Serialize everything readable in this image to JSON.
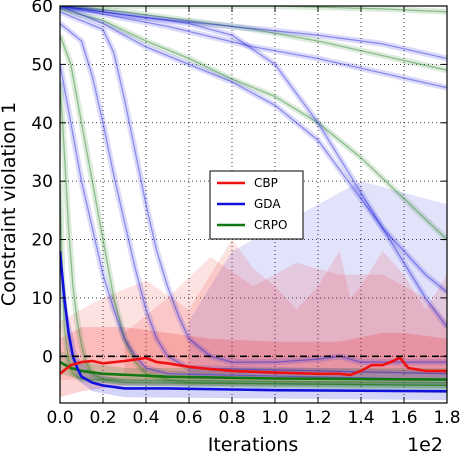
{
  "chart_data": {
    "type": "line",
    "title": "",
    "xlabel": "Iterations",
    "ylabel": "Constraint violation 1",
    "x_offset_text": "1e2",
    "xlim": [
      0,
      1.8
    ],
    "ylim": [
      -8,
      60
    ],
    "xticks": [
      "0.0",
      "0.2",
      "0.4",
      "0.6",
      "0.8",
      "1.0",
      "1.2",
      "1.4",
      "1.6",
      "1.8"
    ],
    "yticks": [
      "0",
      "10",
      "20",
      "30",
      "40",
      "50",
      "60"
    ],
    "ytick_values": [
      0,
      10,
      20,
      30,
      40,
      50,
      60
    ],
    "grid": true,
    "reference_line": {
      "y": 0,
      "style": "dashed",
      "color": "#000000"
    },
    "legend_position": "center-right",
    "legend": [
      "CBP",
      "GDA",
      "CRPO"
    ],
    "colors": {
      "CBP": "#ee1111",
      "GDA": "#1111dd",
      "CRPO": "#117711"
    },
    "series": [
      {
        "name": "CBP",
        "color": "#ee1111",
        "bold": true,
        "points": [
          [
            0,
            -3
          ],
          [
            0.05,
            -1.5
          ],
          [
            0.1,
            -1
          ],
          [
            0.15,
            -0.8
          ],
          [
            0.2,
            -1.2
          ],
          [
            0.3,
            -0.8
          ],
          [
            0.4,
            -0.3
          ],
          [
            0.45,
            -1
          ],
          [
            0.5,
            -1.2
          ],
          [
            0.6,
            -1.8
          ],
          [
            0.7,
            -2.2
          ],
          [
            0.8,
            -2.5
          ],
          [
            1.0,
            -2.8
          ],
          [
            1.2,
            -3
          ],
          [
            1.3,
            -3
          ],
          [
            1.35,
            -3.2
          ],
          [
            1.4,
            -2.5
          ],
          [
            1.45,
            -1.5
          ],
          [
            1.5,
            -1.5
          ],
          [
            1.55,
            -0.8
          ],
          [
            1.58,
            -0.2
          ],
          [
            1.62,
            -2
          ],
          [
            1.7,
            -2.5
          ],
          [
            1.8,
            -2.5
          ]
        ],
        "band": [
          [
            0,
            -7,
            3
          ],
          [
            0.1,
            -6,
            5
          ],
          [
            0.3,
            -5,
            5
          ],
          [
            0.5,
            -5,
            4
          ],
          [
            0.7,
            -5,
            3
          ],
          [
            1.0,
            -5,
            2.5
          ],
          [
            1.3,
            -5,
            2.5
          ],
          [
            1.5,
            -5,
            4
          ],
          [
            1.6,
            -5,
            4
          ],
          [
            1.8,
            -5,
            3
          ]
        ]
      },
      {
        "name": "GDA",
        "color": "#1111dd",
        "bold": true,
        "points": [
          [
            0,
            18
          ],
          [
            0.02,
            10
          ],
          [
            0.04,
            4
          ],
          [
            0.06,
            0
          ],
          [
            0.08,
            -2
          ],
          [
            0.1,
            -3.5
          ],
          [
            0.15,
            -4.5
          ],
          [
            0.2,
            -5
          ],
          [
            0.3,
            -5.5
          ],
          [
            0.5,
            -5.5
          ],
          [
            1.0,
            -5.8
          ],
          [
            1.8,
            -6
          ]
        ],
        "band": [
          [
            0,
            12,
            19
          ],
          [
            0.04,
            1,
            7
          ],
          [
            0.08,
            -4,
            0
          ],
          [
            0.15,
            -6,
            -3
          ],
          [
            0.3,
            -7,
            -4
          ],
          [
            1.8,
            -7.5,
            -4.5
          ]
        ]
      },
      {
        "name": "CRPO",
        "color": "#117711",
        "bold": true,
        "points": [
          [
            0,
            -1
          ],
          [
            0.05,
            -2
          ],
          [
            0.1,
            -2.5
          ],
          [
            0.2,
            -3
          ],
          [
            0.5,
            -3.5
          ],
          [
            1.0,
            -3.8
          ],
          [
            1.8,
            -4
          ]
        ],
        "band": [
          [
            0,
            -3,
            1
          ],
          [
            0.1,
            -4,
            -1
          ],
          [
            0.3,
            -5,
            -2
          ],
          [
            1.8,
            -6,
            -2
          ]
        ]
      },
      {
        "name": "",
        "color": "#117711",
        "points": [
          [
            0,
            60
          ],
          [
            0.5,
            60
          ],
          [
            1.0,
            60
          ],
          [
            1.5,
            59.5
          ],
          [
            1.8,
            59
          ]
        ]
      },
      {
        "name": "",
        "color": "#117711",
        "points": [
          [
            0,
            60
          ],
          [
            0.3,
            59
          ],
          [
            0.6,
            57.5
          ],
          [
            0.9,
            56
          ],
          [
            1.2,
            54
          ],
          [
            1.5,
            51.5
          ],
          [
            1.8,
            49
          ]
        ]
      },
      {
        "name": "",
        "color": "#117711",
        "points": [
          [
            0,
            59.5
          ],
          [
            0.2,
            57.5
          ],
          [
            0.4,
            54
          ],
          [
            0.6,
            51
          ],
          [
            0.8,
            47.5
          ],
          [
            1.0,
            44.5
          ],
          [
            1.2,
            40
          ],
          [
            1.4,
            34
          ],
          [
            1.6,
            27
          ],
          [
            1.8,
            20
          ]
        ]
      },
      {
        "name": "",
        "color": "#117711",
        "points": [
          [
            0,
            55
          ],
          [
            0.05,
            50
          ],
          [
            0.1,
            40
          ],
          [
            0.15,
            30
          ],
          [
            0.2,
            20
          ],
          [
            0.25,
            10
          ],
          [
            0.3,
            3
          ],
          [
            0.35,
            -1
          ],
          [
            0.4,
            -3
          ],
          [
            0.5,
            -4
          ],
          [
            0.6,
            -4.5
          ],
          [
            1.8,
            -5
          ]
        ]
      },
      {
        "name": "",
        "color": "#117711",
        "points": [
          [
            0,
            47
          ],
          [
            0.02,
            35
          ],
          [
            0.04,
            22
          ],
          [
            0.06,
            12
          ],
          [
            0.08,
            6
          ],
          [
            0.1,
            2
          ],
          [
            0.12,
            -1
          ],
          [
            0.15,
            -3
          ],
          [
            0.2,
            -4
          ],
          [
            0.3,
            -4.5
          ],
          [
            1.8,
            -5
          ]
        ]
      },
      {
        "name": "",
        "color": "#117711",
        "points": [
          [
            0,
            30
          ],
          [
            0.01,
            15
          ],
          [
            0.02,
            5
          ],
          [
            0.04,
            -1
          ],
          [
            0.06,
            -3
          ],
          [
            0.1,
            -4
          ],
          [
            1.8,
            -4.5
          ]
        ]
      },
      {
        "name": "",
        "color": "#1111dd",
        "points": [
          [
            0,
            60
          ],
          [
            0.4,
            58
          ],
          [
            0.8,
            56.5
          ],
          [
            1.2,
            55
          ],
          [
            1.5,
            53.5
          ],
          [
            1.8,
            51
          ]
        ]
      },
      {
        "name": "",
        "color": "#1111dd",
        "points": [
          [
            0,
            60
          ],
          [
            0.5,
            56.5
          ],
          [
            0.9,
            53
          ],
          [
            1.2,
            51
          ],
          [
            1.5,
            48.5
          ],
          [
            1.8,
            46
          ]
        ]
      },
      {
        "name": "",
        "color": "#1111dd",
        "points": [
          [
            0,
            60
          ],
          [
            0.2,
            57
          ],
          [
            0.4,
            53
          ],
          [
            0.6,
            50
          ],
          [
            0.8,
            47
          ],
          [
            1.0,
            43
          ],
          [
            1.2,
            37
          ],
          [
            1.3,
            32
          ],
          [
            1.4,
            27
          ],
          [
            1.5,
            22
          ],
          [
            1.6,
            18
          ],
          [
            1.7,
            14
          ],
          [
            1.8,
            11
          ]
        ]
      },
      {
        "name": "",
        "color": "#1111dd",
        "points": [
          [
            0,
            59
          ],
          [
            0.2,
            56
          ],
          [
            0.25,
            52
          ],
          [
            0.3,
            44
          ],
          [
            0.35,
            35
          ],
          [
            0.4,
            26
          ],
          [
            0.45,
            18
          ],
          [
            0.5,
            12
          ],
          [
            0.55,
            7
          ],
          [
            0.6,
            3
          ],
          [
            0.7,
            0
          ],
          [
            0.8,
            -1
          ],
          [
            1.0,
            -1
          ],
          [
            1.2,
            -0.5
          ],
          [
            1.3,
            0
          ],
          [
            1.4,
            -1
          ],
          [
            1.6,
            -1
          ],
          [
            1.8,
            -1
          ]
        ]
      },
      {
        "name": "",
        "color": "#1111dd",
        "points": [
          [
            0,
            57
          ],
          [
            0.1,
            54
          ],
          [
            0.15,
            48
          ],
          [
            0.2,
            40
          ],
          [
            0.25,
            31
          ],
          [
            0.3,
            23
          ],
          [
            0.35,
            15
          ],
          [
            0.4,
            8
          ],
          [
            0.45,
            3
          ],
          [
            0.5,
            0
          ],
          [
            0.6,
            -2
          ],
          [
            1.8,
            -3
          ]
        ]
      },
      {
        "name": "",
        "color": "#1111dd",
        "points": [
          [
            0,
            50
          ],
          [
            0.05,
            40
          ],
          [
            0.1,
            30
          ],
          [
            0.15,
            22
          ],
          [
            0.2,
            14
          ],
          [
            0.25,
            8
          ],
          [
            0.3,
            3
          ],
          [
            0.35,
            0
          ],
          [
            0.4,
            -2
          ],
          [
            0.5,
            -3
          ],
          [
            1.8,
            -4
          ]
        ]
      },
      {
        "name": "",
        "color": "#1111dd",
        "points": [
          [
            0,
            60
          ],
          [
            0.6,
            57
          ],
          [
            0.8,
            55
          ],
          [
            1.0,
            50
          ],
          [
            1.1,
            45
          ],
          [
            1.2,
            40
          ],
          [
            1.3,
            34
          ],
          [
            1.4,
            28
          ],
          [
            1.5,
            22
          ],
          [
            1.6,
            16
          ],
          [
            1.7,
            10
          ],
          [
            1.8,
            5
          ]
        ]
      }
    ],
    "extra_bands": [
      {
        "color": "#1111dd",
        "points": [
          [
            0.6,
            -4,
            6
          ],
          [
            0.8,
            -4,
            18
          ],
          [
            1.0,
            -4,
            22
          ],
          [
            1.2,
            -4,
            26
          ],
          [
            1.4,
            -4,
            30
          ],
          [
            1.6,
            -4,
            28
          ],
          [
            1.8,
            -4,
            26
          ]
        ]
      },
      {
        "color": "#ee1111",
        "points": [
          [
            0.0,
            -4,
            6
          ],
          [
            0.2,
            -4,
            10
          ],
          [
            0.4,
            -4,
            13
          ],
          [
            0.6,
            -4,
            8
          ],
          [
            0.8,
            -4,
            20
          ],
          [
            0.9,
            -4,
            15
          ],
          [
            1.0,
            -4,
            12
          ],
          [
            1.1,
            -4,
            8
          ],
          [
            1.2,
            -4,
            12
          ],
          [
            1.3,
            -4,
            18
          ],
          [
            1.35,
            -4,
            10
          ],
          [
            1.4,
            -4,
            12
          ],
          [
            1.5,
            -4,
            18
          ],
          [
            1.6,
            -4,
            14
          ],
          [
            1.7,
            -4,
            8
          ],
          [
            1.8,
            -4,
            14
          ]
        ]
      },
      {
        "color": "#ee1111",
        "points": [
          [
            0.3,
            -3,
            4
          ],
          [
            0.5,
            -3,
            10
          ],
          [
            0.7,
            -3,
            17
          ],
          [
            0.9,
            -3,
            12
          ],
          [
            1.1,
            -3,
            16
          ],
          [
            1.3,
            -3,
            14
          ],
          [
            1.5,
            -3,
            14
          ],
          [
            1.7,
            -3,
            10
          ],
          [
            1.8,
            -3,
            6
          ]
        ]
      }
    ]
  }
}
